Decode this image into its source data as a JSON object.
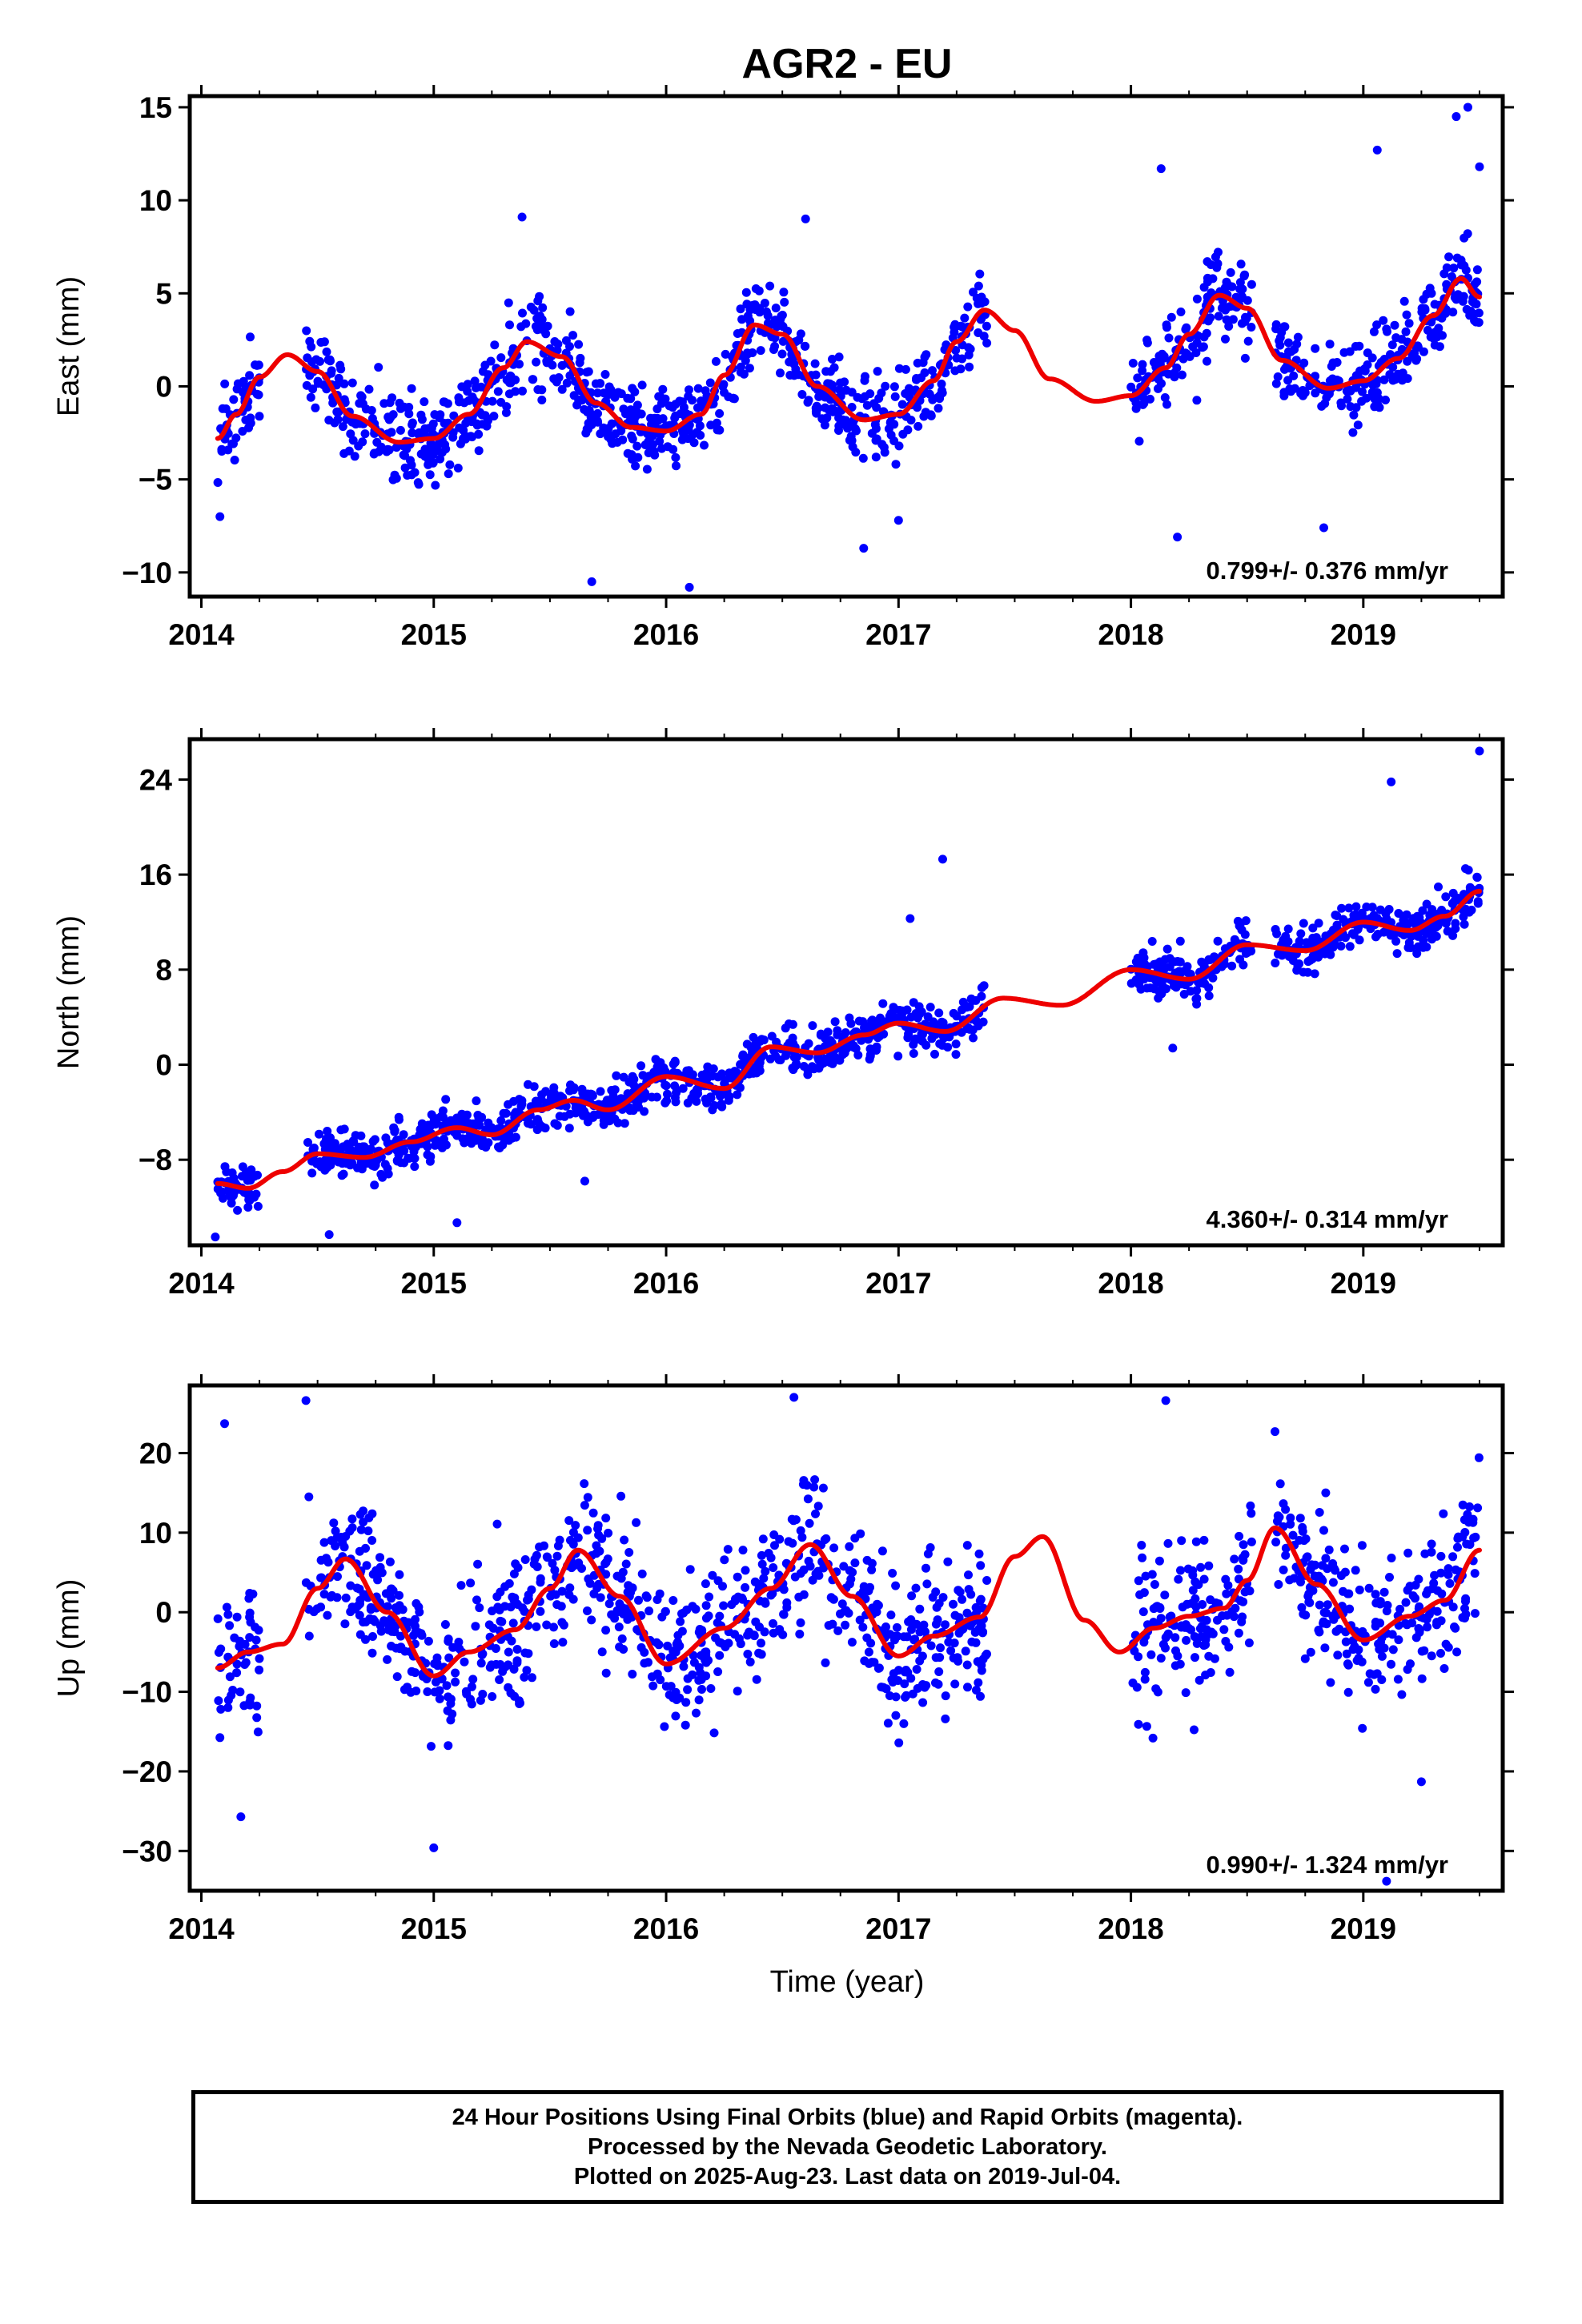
{
  "figure": {
    "title": "AGR2 - EU",
    "xlabel": "Time (year)",
    "footer_lines": [
      "24 Hour Positions Using Final Orbits (blue) and Rapid Orbits (magenta).",
      "Processed by the Nevada Geodetic Laboratory.",
      "Plotted on 2025-Aug-23. Last data on 2019-Jul-04."
    ]
  },
  "colors": {
    "points": "#0000ff",
    "model": "#ee0000",
    "axes": "#000000"
  },
  "chart_data": [
    {
      "type": "scatter",
      "name": "east",
      "ylabel": "East (mm)",
      "rate_text": "0.799+/- 0.376 mm/yr",
      "xlim": [
        2013.95,
        2019.6
      ],
      "ylim": [
        -11.3,
        15.6
      ],
      "x_ticks": [
        2014,
        2015,
        2016,
        2017,
        2018,
        2019
      ],
      "x_tick_labels": [
        "2014",
        "2015",
        "2016",
        "2017",
        "2018",
        "2019"
      ],
      "y_ticks": [
        -10,
        -5,
        0,
        5,
        10,
        15
      ],
      "y_tick_labels": [
        "−10",
        "−5",
        "0",
        "5",
        "10",
        "15"
      ],
      "model_curve": {
        "x": [
          2014.07,
          2014.15,
          2014.25,
          2014.37,
          2014.5,
          2014.65,
          2014.85,
          2015.0,
          2015.15,
          2015.3,
          2015.4,
          2015.55,
          2015.7,
          2015.85,
          2016.0,
          2016.15,
          2016.25,
          2016.38,
          2016.5,
          2016.65,
          2016.85,
          2017.0,
          2017.15,
          2017.25,
          2017.37,
          2017.5,
          2017.65,
          2017.85,
          2018.0,
          2018.15,
          2018.25,
          2018.38,
          2018.5,
          2018.65,
          2018.85,
          2019.0,
          2019.15,
          2019.3,
          2019.42,
          2019.5
        ],
        "y": [
          -2.8,
          -1.5,
          0.5,
          1.7,
          0.8,
          -1.6,
          -3.0,
          -2.8,
          -1.5,
          1.0,
          2.4,
          1.6,
          -0.9,
          -2.2,
          -2.4,
          -1.5,
          0.6,
          3.3,
          2.8,
          0.0,
          -1.8,
          -1.5,
          0.3,
          2.4,
          4.1,
          3.0,
          0.4,
          -0.8,
          -0.5,
          1.0,
          2.8,
          4.9,
          4.2,
          1.4,
          -0.1,
          0.3,
          1.5,
          3.8,
          5.8,
          4.8
        ]
      },
      "outliers": [
        {
          "x": 2014.08,
          "y": -7.0
        },
        {
          "x": 2015.38,
          "y": 9.1
        },
        {
          "x": 2015.68,
          "y": -10.5
        },
        {
          "x": 2016.1,
          "y": -10.8
        },
        {
          "x": 2016.6,
          "y": 9.0
        },
        {
          "x": 2016.85,
          "y": -8.7
        },
        {
          "x": 2017.0,
          "y": -7.2
        },
        {
          "x": 2018.13,
          "y": 11.7
        },
        {
          "x": 2018.2,
          "y": -8.1
        },
        {
          "x": 2018.83,
          "y": -7.6
        },
        {
          "x": 2019.06,
          "y": 12.7
        },
        {
          "x": 2019.45,
          "y": 15.0
        },
        {
          "x": 2019.4,
          "y": 14.5
        },
        {
          "x": 2019.5,
          "y": 11.8
        }
      ]
    },
    {
      "type": "scatter",
      "name": "north",
      "ylabel": "North (mm)",
      "rate_text": "4.360+/- 0.314 mm/yr",
      "xlim": [
        2013.95,
        2019.6
      ],
      "ylim": [
        -15.2,
        27.4
      ],
      "x_ticks": [
        2014,
        2015,
        2016,
        2017,
        2018,
        2019
      ],
      "x_tick_labels": [
        "2014",
        "2015",
        "2016",
        "2017",
        "2018",
        "2019"
      ],
      "y_ticks": [
        -8,
        0,
        8,
        16,
        24
      ],
      "y_tick_labels": [
        "−8",
        "0",
        "8",
        "16",
        "24"
      ],
      "model_curve": {
        "x": [
          2014.07,
          2014.2,
          2014.35,
          2014.5,
          2014.7,
          2014.9,
          2015.1,
          2015.25,
          2015.45,
          2015.6,
          2015.75,
          2016.0,
          2016.25,
          2016.45,
          2016.65,
          2016.85,
          2017.0,
          2017.2,
          2017.45,
          2017.7,
          2018.0,
          2018.25,
          2018.5,
          2018.75,
          2019.0,
          2019.2,
          2019.35,
          2019.5
        ],
        "y": [
          -10.0,
          -10.4,
          -9.0,
          -7.5,
          -7.8,
          -6.5,
          -5.3,
          -5.9,
          -3.8,
          -3.0,
          -3.8,
          -1.0,
          -2.0,
          1.5,
          1.0,
          2.5,
          3.5,
          2.8,
          5.6,
          5.0,
          8.0,
          7.2,
          10.1,
          9.6,
          12.0,
          11.3,
          12.5,
          14.6
        ]
      },
      "outliers": [
        {
          "x": 2017.19,
          "y": 17.3
        },
        {
          "x": 2017.05,
          "y": 12.3
        },
        {
          "x": 2019.12,
          "y": 23.8
        },
        {
          "x": 2019.5,
          "y": 26.4
        },
        {
          "x": 2018.18,
          "y": 1.4
        },
        {
          "x": 2015.65,
          "y": -9.8
        },
        {
          "x": 2014.06,
          "y": -14.5
        },
        {
          "x": 2014.55,
          "y": -14.3
        },
        {
          "x": 2015.1,
          "y": -13.3
        }
      ]
    },
    {
      "type": "scatter",
      "name": "up",
      "ylabel": "Up (mm)",
      "rate_text": "0.990+/- 1.324 mm/yr",
      "xlim": [
        2013.95,
        2019.6
      ],
      "ylim": [
        -35.0,
        28.5
      ],
      "x_ticks": [
        2014,
        2015,
        2016,
        2017,
        2018,
        2019
      ],
      "x_tick_labels": [
        "2014",
        "2015",
        "2016",
        "2017",
        "2018",
        "2019"
      ],
      "y_ticks": [
        -30,
        -20,
        -10,
        0,
        10,
        20
      ],
      "y_tick_labels": [
        "−30",
        "−20",
        "−10",
        "0",
        "10",
        "20"
      ],
      "model_curve": {
        "x": [
          2014.07,
          2014.2,
          2014.35,
          2014.5,
          2014.62,
          2014.8,
          2015.0,
          2015.15,
          2015.35,
          2015.5,
          2015.62,
          2015.8,
          2016.0,
          2016.25,
          2016.45,
          2016.62,
          2016.8,
          2017.0,
          2017.15,
          2017.35,
          2017.5,
          2017.62,
          2017.8,
          2017.95,
          2018.1,
          2018.25,
          2018.4,
          2018.5,
          2018.62,
          2018.8,
          2019.0,
          2019.2,
          2019.35,
          2019.5
        ],
        "y": [
          -7.0,
          -5.0,
          -4.0,
          3.0,
          6.7,
          0.0,
          -8.0,
          -5.0,
          -2.2,
          3.0,
          7.8,
          2.0,
          -6.5,
          -2.0,
          3.0,
          8.5,
          2.0,
          -5.5,
          -3.0,
          -0.6,
          7.0,
          9.5,
          -1.0,
          -5.0,
          -2.0,
          -0.5,
          0.5,
          4.0,
          10.6,
          3.5,
          -3.5,
          -0.5,
          1.5,
          7.8
        ]
      },
      "outliers": [
        {
          "x": 2014.17,
          "y": -25.7
        },
        {
          "x": 2015.0,
          "y": -29.6
        },
        {
          "x": 2014.45,
          "y": 26.6
        },
        {
          "x": 2016.55,
          "y": 27.0
        },
        {
          "x": 2018.15,
          "y": 26.6
        },
        {
          "x": 2019.1,
          "y": -33.8
        },
        {
          "x": 2019.25,
          "y": -21.3
        },
        {
          "x": 2014.1,
          "y": 23.7
        },
        {
          "x": 2018.62,
          "y": 22.7
        }
      ]
    }
  ]
}
